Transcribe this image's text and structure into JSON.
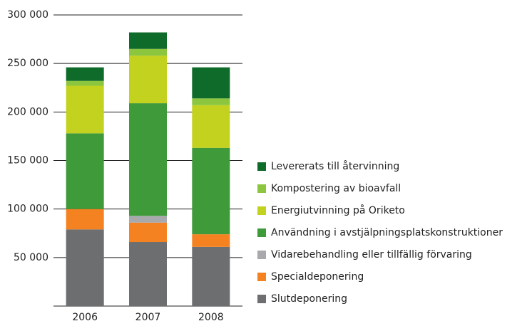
{
  "chart_data": {
    "type": "stacked_bar",
    "categories": [
      "2006",
      "2007",
      "2008"
    ],
    "series": [
      {
        "name": "Slutdeponering",
        "color": "#6d6e70",
        "values": [
          79000,
          66000,
          61000
        ]
      },
      {
        "name": "Specialdeponering",
        "color": "#f58220",
        "values": [
          21000,
          20000,
          13000
        ]
      },
      {
        "name": "Vidarebehandling eller tillfällig förvaring",
        "color": "#a7a9ac",
        "values": [
          0,
          7000,
          0
        ]
      },
      {
        "name": "Användning i avstjälpningsplatskonstruktioner",
        "color": "#3f9a3a",
        "values": [
          78000,
          116000,
          89000
        ]
      },
      {
        "name": "Energiutvinning på Oriketo",
        "color": "#c3d21e",
        "values": [
          49000,
          49000,
          44000
        ]
      },
      {
        "name": "Kompostering av bioavfall",
        "color": "#8cc63f",
        "values": [
          5000,
          7000,
          7000
        ]
      },
      {
        "name": "Levererats till återvinning",
        "color": "#0f6b2a",
        "values": [
          14000,
          17000,
          32000
        ]
      }
    ],
    "ylim": [
      0,
      300000
    ],
    "yticks": [
      {
        "value": 50000,
        "label": "50 000"
      },
      {
        "value": 100000,
        "label": "100 000"
      },
      {
        "value": 150000,
        "label": "150 000"
      },
      {
        "value": 200000,
        "label": "200 000"
      },
      {
        "value": 250000,
        "label": "250 000"
      },
      {
        "value": 300000,
        "label": "300 000"
      }
    ],
    "grid": true,
    "legend": "right"
  }
}
